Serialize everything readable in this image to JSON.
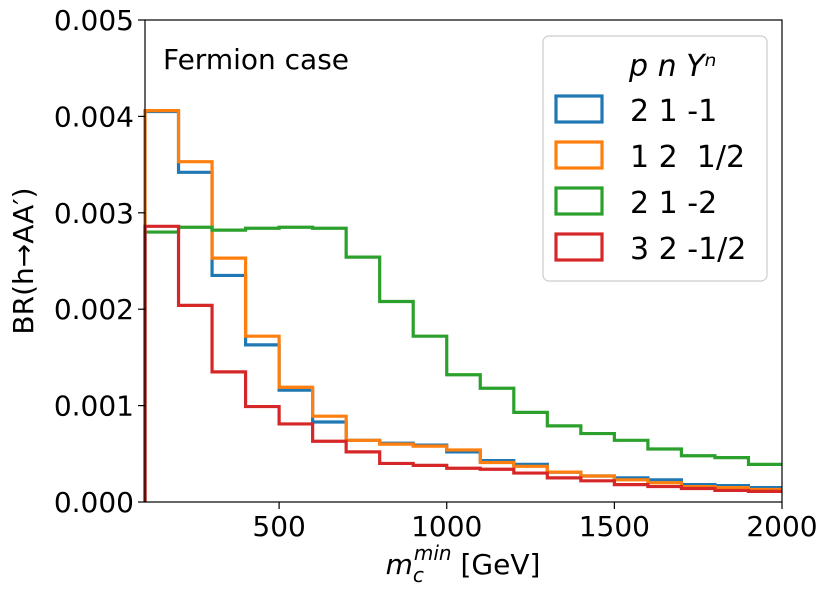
{
  "chart_data": {
    "type": "step",
    "x_edges": [
      100,
      200,
      300,
      400,
      500,
      600,
      700,
      800,
      900,
      1000,
      1100,
      1200,
      1300,
      1400,
      1500,
      1600,
      1700,
      1800,
      1900,
      2000
    ],
    "series": [
      {
        "name": "2 1 -1",
        "color": "#1f77b4",
        "values": [
          0.00405,
          0.00342,
          0.00235,
          0.00163,
          0.00116,
          0.00083,
          0.00064,
          0.00061,
          0.00059,
          0.00052,
          0.00043,
          0.00039,
          0.00031,
          0.00027,
          0.00025,
          0.00023,
          0.00018,
          0.00017,
          0.00015
        ]
      },
      {
        "name": "1 2  1/2",
        "color": "#ff7f0e",
        "values": [
          0.00406,
          0.00353,
          0.00253,
          0.00172,
          0.00119,
          0.00089,
          0.00064,
          0.0006,
          0.00058,
          0.00054,
          0.00041,
          0.00037,
          0.00031,
          0.00027,
          0.00023,
          0.0002,
          0.00016,
          0.00015,
          0.00013
        ]
      },
      {
        "name": "2 1 -2",
        "color": "#2ca02c",
        "values": [
          0.0028,
          0.00285,
          0.00282,
          0.00284,
          0.00285,
          0.00284,
          0.00254,
          0.00208,
          0.00172,
          0.00132,
          0.00118,
          0.00093,
          0.00079,
          0.00071,
          0.00064,
          0.00055,
          0.00048,
          0.00046,
          0.00039
        ]
      },
      {
        "name": "3 2 -1/2",
        "color": "#d62728",
        "values": [
          0.00286,
          0.00204,
          0.00135,
          0.00099,
          0.00081,
          0.00063,
          0.00052,
          0.0004,
          0.00038,
          0.00035,
          0.00034,
          0.0003,
          0.00025,
          0.00022,
          0.00018,
          0.00016,
          0.00014,
          0.00012,
          0.00011
        ]
      }
    ],
    "xlim": [
      100,
      2000
    ],
    "ylim": [
      0,
      0.005
    ],
    "x_ticks": [
      500,
      1000,
      1500,
      2000
    ],
    "x_tick_labels": [
      "500",
      "1000",
      "1500",
      "2000"
    ],
    "y_ticks": [
      0,
      0.001,
      0.002,
      0.003,
      0.004,
      0.005
    ],
    "y_tick_labels": [
      "0.000",
      "0.001",
      "0.002",
      "0.003",
      "0.004",
      "0.005"
    ],
    "xlabel": {
      "main": "m",
      "sub": "c",
      "sup": "min",
      "unit": " [GeV]"
    },
    "ylabel": "BR(h→AA′)",
    "annotation": "Fermion case",
    "legend_title": "p  n  Yⁿ",
    "legend_position": "top-right",
    "grid": false
  }
}
